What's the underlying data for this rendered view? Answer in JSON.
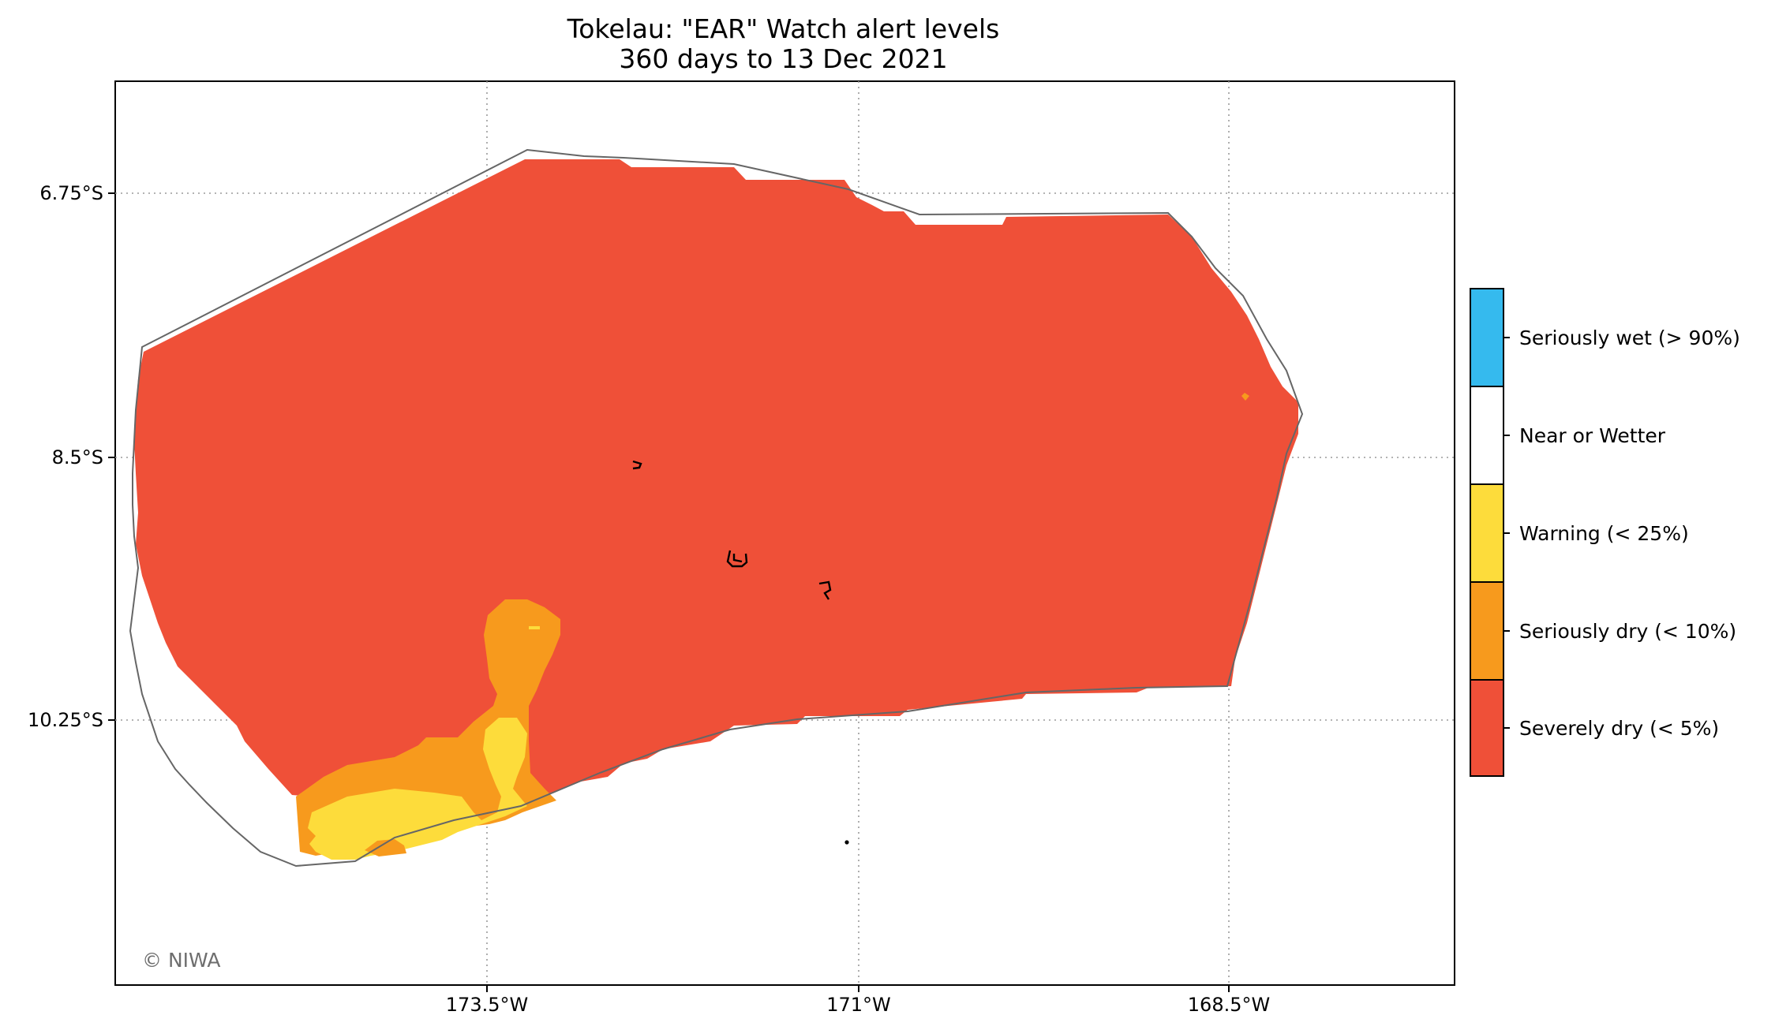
{
  "title": {
    "line1": "Tokelau: \"EAR\" Watch alert levels",
    "line2": "360 days to 13 Dec 2021"
  },
  "axes": {
    "y_ticks": [
      "6.75°S",
      "8.5°S",
      "10.25°S"
    ],
    "x_ticks": [
      "173.5°W",
      "171°W",
      "168.5°W"
    ]
  },
  "legend": {
    "items": [
      {
        "label": "Seriously wet (> 90%)",
        "color": "#35baee"
      },
      {
        "label": "Near or Wetter",
        "color": "#ffffff"
      },
      {
        "label": "Warning (< 25%)",
        "color": "#fddc3b"
      },
      {
        "label": "Seriously dry (< 10%)",
        "color": "#f79a1d"
      },
      {
        "label": "Severely dry (< 5%)",
        "color": "#ef5038"
      }
    ]
  },
  "credit": "© NIWA",
  "colors": {
    "severely_dry": "#ef5038",
    "seriously_dry": "#f79a1d",
    "warning": "#fddc3b",
    "boundary": "#666666",
    "grid": "#9a9a9a"
  }
}
